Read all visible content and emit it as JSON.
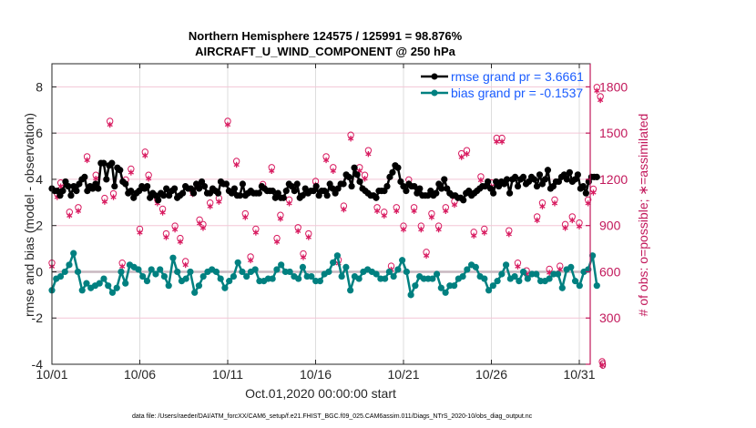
{
  "chart_data": {
    "type": "line",
    "title_line1": "Northern Hemisphere 124575 / 125991 = 98.876%",
    "title_line2": "AIRCRAFT_U_WIND_COMPONENT @ 250 hPa",
    "xlabel": "Oct.01,2020 00:00:00 start",
    "ylabel": "rmse and bias (model - observation)",
    "y2label": "# of obs: o=possible; ∗=assimilated",
    "footnote": "data file: /Users/raeder/DAI/ATM_forcXX/CAM6_setup/f.e21.FHIST_BGC.f09_025.CAM6assim.011/Diags_NTrS_2020-10/obs_diag_output.nc",
    "x_ticks": [
      "10/01",
      "10/06",
      "10/11",
      "10/16",
      "10/21",
      "10/26",
      "10/31"
    ],
    "x_tick_days": [
      0,
      5,
      10,
      15,
      20,
      25,
      30
    ],
    "x_range_days": [
      0,
      31
    ],
    "ylim": [
      -4,
      9
    ],
    "y_ticks": [
      "-4",
      "-2",
      "0",
      "2",
      "4",
      "6",
      "8"
    ],
    "y_tick_values": [
      -4,
      -2,
      0,
      2,
      4,
      6,
      8
    ],
    "y2lim": [
      0,
      1950
    ],
    "y2_ticks": [
      "0",
      "300",
      "600",
      "900",
      "1200",
      "1500",
      "1800"
    ],
    "y2_tick_values": [
      0,
      300,
      600,
      900,
      1200,
      1500,
      1800
    ],
    "grid": true,
    "zero_line": 0,
    "legend_position": "top-right",
    "colors": {
      "rmse": "#000000",
      "bias": "#008080",
      "obs": "#d81b60",
      "zero_line": "#c8b8c0",
      "grid": "#dddddd",
      "right_grid": "#f3c6d6",
      "legend_text": "#1a5cff"
    },
    "series": [
      {
        "name": "rmse grand pr = 3.6661",
        "key": "rmse",
        "step_days": 0.25,
        "values": [
          3.6,
          3.5,
          3.5,
          3.3,
          3.5,
          3.9,
          3.7,
          3.3,
          3.7,
          3.5,
          3.8,
          4.0,
          4.1,
          3.5,
          3.7,
          3.6,
          3.8,
          3.6,
          4.7,
          4.7,
          4.0,
          4.6,
          4.7,
          3.7,
          4.5,
          4.4,
          3.9,
          3.8,
          3.4,
          3.5,
          3.2,
          3.4,
          3.5,
          3.7,
          3.6,
          3.7,
          3.2,
          3.4,
          3.3,
          3.1,
          3.4,
          3.3,
          3.6,
          3.3,
          3.5,
          3.6,
          3.2,
          3.3,
          3.4,
          3.7,
          3.6,
          3.6,
          3.4,
          3.8,
          3.6,
          3.9,
          3.7,
          3.4,
          3.4,
          3.6,
          3.5,
          3.4,
          3.9,
          3.8,
          3.8,
          3.5,
          3.4,
          3.6,
          3.3,
          3.3,
          3.8,
          3.3,
          3.4,
          3.5,
          3.4,
          3.4,
          3.4,
          3.7,
          3.6,
          3.5,
          3.5,
          3.5,
          3.2,
          3.4,
          3.2,
          3.2,
          3.5,
          3.8,
          3.7,
          3.5,
          3.8,
          3.2,
          3.3,
          3.6,
          3.4,
          3.5,
          3.5,
          3.7,
          3.3,
          3.5,
          3.5,
          3.3,
          3.8,
          3.6,
          3.4,
          3.6,
          3.8,
          3.8,
          4.2,
          4.1,
          3.7,
          4.5,
          4.2,
          3.9,
          3.6,
          3.5,
          3.4,
          3.3,
          3.3,
          3.2,
          3.5,
          3.5,
          3.5,
          3.7,
          4.1,
          4.3,
          4.6,
          4.5,
          3.9
        ],
        "values_tail": [
          3.7,
          3.5,
          3.8,
          3.7,
          3.7,
          3.4,
          3.6,
          3.3,
          3.3,
          3.3,
          3.5,
          3.3,
          3.4,
          3.8,
          3.6,
          4.0,
          3.6,
          3.4,
          3.3,
          3.3,
          3.2,
          3.2,
          3.1,
          3.4,
          3.5,
          3.3,
          3.4,
          3.5,
          3.6,
          3.7,
          3.7,
          3.9,
          3.6,
          3.4,
          3.9,
          3.7,
          3.9,
          3.8,
          4.0,
          3.4,
          4.0,
          4.1,
          3.7,
          4.0,
          4.1,
          3.8,
          3.9,
          4.1,
          4.0,
          3.7,
          4.2,
          3.8,
          4.0,
          4.4,
          3.6,
          3.7,
          3.9,
          3.9,
          4.1,
          4.2,
          4.0,
          4.3,
          3.9,
          4.0,
          4.2,
          3.6,
          3.7,
          3.4,
          3.9,
          4.1,
          4.1,
          4.1
        ]
      },
      {
        "name": "bias grand pr = -0.1537",
        "key": "bias",
        "step_days": 0.25,
        "values": [
          -0.8,
          -0.3,
          -0.2,
          0.0,
          0.3,
          0.8,
          0.0,
          -0.8,
          -0.5,
          -0.7,
          -0.6,
          -0.5,
          -0.3,
          -0.6,
          -0.9,
          -0.7,
          0.0,
          -0.5,
          0.3,
          0.2,
          0.1,
          -0.2,
          -0.4,
          0.1,
          -0.1,
          0.1,
          -0.2,
          -0.6,
          0.6,
          0.0,
          -0.4,
          -0.3,
          0.0,
          -0.9,
          -0.6,
          -0.2,
          0.0,
          0.1,
          0.0,
          -0.3,
          -0.7,
          -0.4,
          -0.2,
          0.4,
          0.0,
          -0.2,
          0.0,
          0.1,
          -0.4,
          -0.4,
          -0.3,
          -0.3,
          0.1,
          0.3,
          0.0,
          0.0,
          -0.2,
          -0.3,
          0.2,
          -0.2,
          -0.2,
          -0.4,
          -0.4,
          -0.1,
          0.0,
          0.4,
          0.7,
          -0.2,
          0.2,
          -0.8,
          -0.2,
          -0.3,
          0.0,
          0.1,
          0.0,
          -0.1,
          -0.3,
          -0.3,
          0.0,
          -0.2,
          0.1,
          0.5,
          0.0,
          -1.0,
          -0.6,
          -0.2,
          -0.3,
          -0.3,
          -0.3,
          -0.1,
          -0.7,
          -0.9,
          -0.6,
          -0.6,
          -0.3,
          -0.2,
          0.1,
          0.3,
          0.2,
          -0.2,
          -0.3,
          -0.8,
          -0.6,
          -0.4,
          -0.1,
          0.3,
          -0.3,
          -0.2,
          -0.4,
          0.0,
          -0.3,
          -0.1,
          -0.1,
          -0.4,
          -0.4,
          -0.3,
          -0.1,
          -0.1,
          -0.7,
          0.1,
          0.2,
          -0.4,
          -0.6,
          0.0,
          0.1,
          0.7,
          -0.6
        ],
        "values_tail": []
      },
      {
        "name": "# obs possible (o)",
        "key": "obs_possible",
        "axis": "right",
        "marker": "o",
        "points": [
          [
            0.0,
            640
          ],
          [
            0.3,
            1090
          ],
          [
            0.5,
            1160
          ],
          [
            1.0,
            970
          ],
          [
            1.5,
            1000
          ],
          [
            2.0,
            1330
          ],
          [
            2.5,
            1210
          ],
          [
            3.0,
            1060
          ],
          [
            3.3,
            1560
          ],
          [
            3.5,
            1090
          ],
          [
            4.0,
            640
          ],
          [
            4.2,
            1180
          ],
          [
            4.5,
            1250
          ],
          [
            5.0,
            860
          ],
          [
            5.3,
            1360
          ],
          [
            5.5,
            1210
          ],
          [
            6.0,
            1050
          ],
          [
            6.3,
            990
          ],
          [
            6.5,
            830
          ],
          [
            7.0,
            880
          ],
          [
            7.3,
            800
          ],
          [
            7.6,
            650
          ],
          [
            8.0,
            1110
          ],
          [
            8.4,
            920
          ],
          [
            8.6,
            890
          ],
          [
            9.0,
            1030
          ],
          [
            9.5,
            1060
          ],
          [
            10.0,
            1560
          ],
          [
            10.5,
            1300
          ],
          [
            11.0,
            960
          ],
          [
            11.3,
            680
          ],
          [
            11.6,
            860
          ],
          [
            12.0,
            1150
          ],
          [
            12.5,
            1260
          ],
          [
            12.8,
            800
          ],
          [
            13.0,
            950
          ],
          [
            13.5,
            1050
          ],
          [
            14.0,
            870
          ],
          [
            14.3,
            700
          ],
          [
            14.6,
            830
          ],
          [
            15.0,
            1170
          ],
          [
            15.6,
            1330
          ],
          [
            16.0,
            1260
          ],
          [
            16.3,
            660
          ],
          [
            16.6,
            1010
          ],
          [
            17.0,
            1470
          ],
          [
            17.5,
            1260
          ],
          [
            17.8,
            1210
          ],
          [
            18.0,
            1370
          ],
          [
            18.5,
            1000
          ],
          [
            18.9,
            970
          ],
          [
            19.3,
            620
          ],
          [
            19.6,
            1000
          ],
          [
            20.0,
            880
          ],
          [
            20.3,
            1180
          ],
          [
            20.6,
            1000
          ],
          [
            21.0,
            880
          ],
          [
            21.3,
            710
          ],
          [
            21.6,
            960
          ],
          [
            22.0,
            880
          ],
          [
            22.4,
            1000
          ],
          [
            22.9,
            1040
          ],
          [
            23.3,
            1350
          ],
          [
            23.6,
            1370
          ],
          [
            24.0,
            840
          ],
          [
            24.4,
            1200
          ],
          [
            24.6,
            860
          ],
          [
            25.0,
            1160
          ],
          [
            25.3,
            1450
          ],
          [
            25.6,
            1450
          ],
          [
            26.0,
            850
          ],
          [
            26.5,
            640
          ],
          [
            27.0,
            590
          ],
          [
            27.6,
            940
          ],
          [
            27.9,
            1030
          ],
          [
            28.3,
            600
          ],
          [
            28.6,
            1050
          ],
          [
            28.9,
            620
          ],
          [
            29.2,
            890
          ],
          [
            29.6,
            940
          ],
          [
            30.0,
            900
          ],
          [
            30.5,
            1050
          ],
          [
            30.8,
            1120
          ],
          [
            31.0,
            1780
          ],
          [
            31.2,
            1720
          ],
          [
            31.3,
            0
          ]
        ]
      }
    ]
  }
}
